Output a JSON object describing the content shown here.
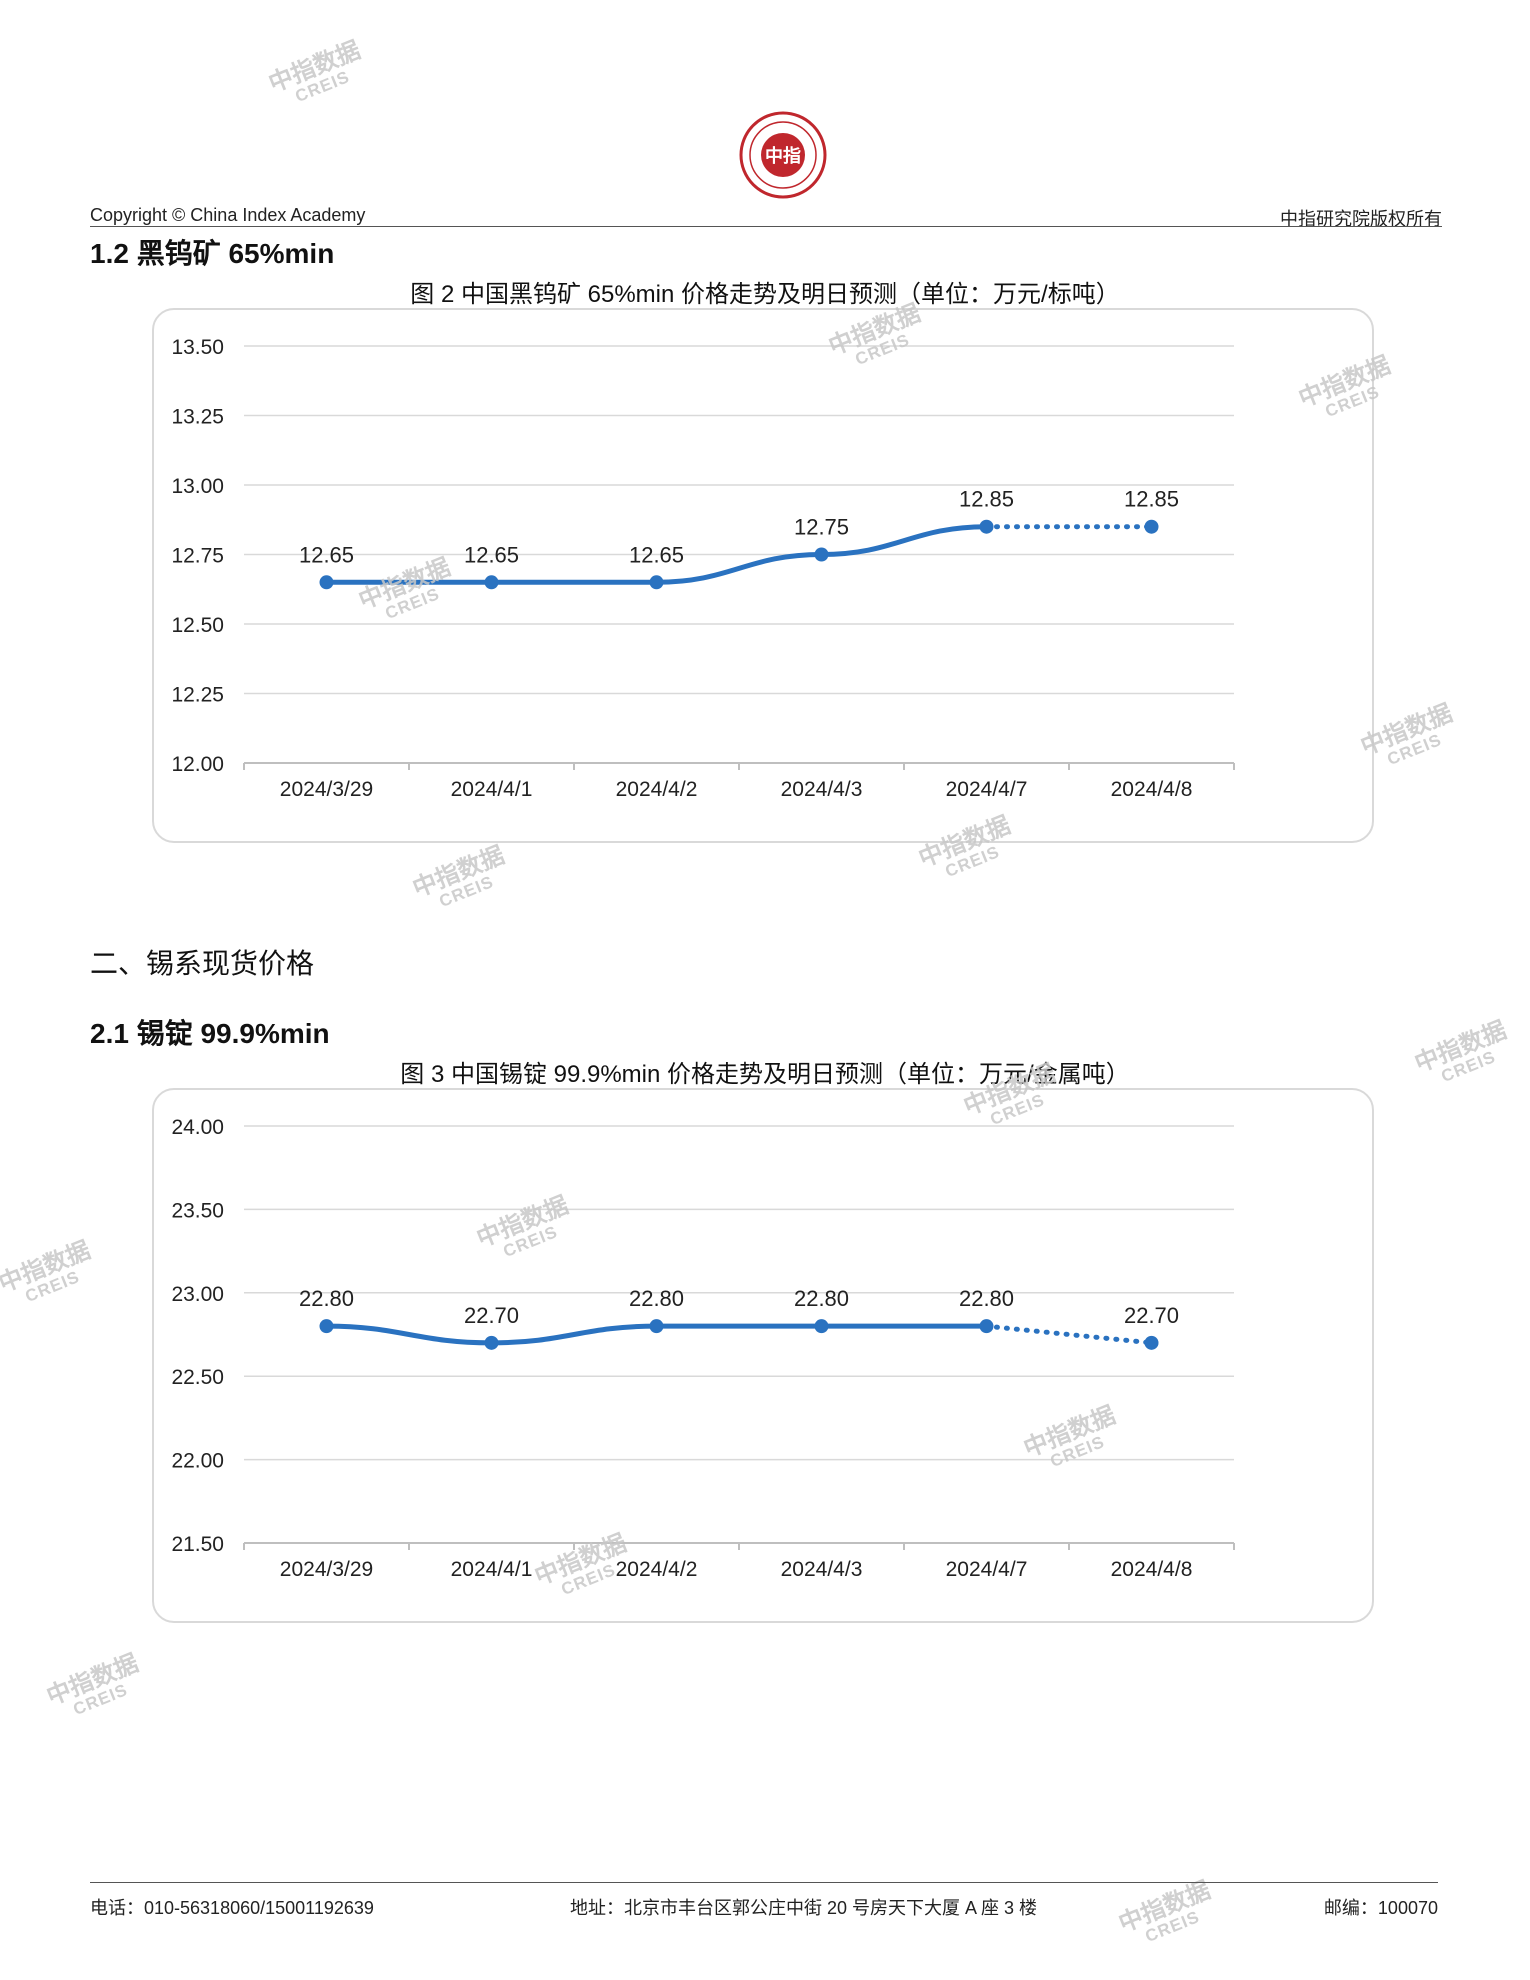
{
  "header": {
    "copyright": "Copyright © China Index Academy",
    "rights": "中指研究院版权所有",
    "logo_text": "中指"
  },
  "section_1_2": {
    "title": "1.2 黑钨矿 65%min"
  },
  "section_2": {
    "title": "二、锡系现货价格"
  },
  "section_2_1": {
    "title": "2.1 锡锭 99.9%min"
  },
  "watermark": {
    "line1": "中指数据",
    "line2": "CREIS"
  },
  "footer": {
    "phone": "电话：010-56318060/15001192639",
    "address": "地址：北京市丰台区郭公庄中街 20 号房天下大厦 A 座 3 楼",
    "postcode": "邮编：100070"
  },
  "colors": {
    "line": "#2a72c0",
    "grid": "#d9d9d9",
    "axis": "#bfbfbf",
    "frame": "#d9d9d9",
    "logo": "#c0272d"
  },
  "chart_data": [
    {
      "type": "line",
      "title": "图 2 中国黑钨矿 65%min 价格走势及明日预测（单位：万元/标吨）",
      "categories": [
        "2024/3/29",
        "2024/4/1",
        "2024/4/2",
        "2024/4/3",
        "2024/4/7",
        "2024/4/8"
      ],
      "values": [
        12.65,
        12.65,
        12.65,
        12.75,
        12.85,
        12.85
      ],
      "value_labels": [
        "12.65",
        "12.65",
        "12.65",
        "12.75",
        "12.85",
        "12.85"
      ],
      "forecast_from_index": 4,
      "ylim": [
        12.0,
        13.5
      ],
      "yticks": [
        "12.00",
        "12.25",
        "12.50",
        "12.75",
        "13.00",
        "13.25",
        "13.50"
      ],
      "grid": true,
      "legend": "none"
    },
    {
      "type": "line",
      "title": "图 3 中国锡锭 99.9%min 价格走势及明日预测（单位：万元/金属吨）",
      "categories": [
        "2024/3/29",
        "2024/4/1",
        "2024/4/2",
        "2024/4/3",
        "2024/4/7",
        "2024/4/8"
      ],
      "values": [
        22.8,
        22.7,
        22.8,
        22.8,
        22.8,
        22.7
      ],
      "value_labels": [
        "22.80",
        "22.70",
        "22.80",
        "22.80",
        "22.80",
        "22.70"
      ],
      "forecast_from_index": 4,
      "ylim": [
        21.5,
        24.0
      ],
      "yticks": [
        "21.50",
        "22.00",
        "22.50",
        "23.00",
        "23.50",
        "24.00"
      ],
      "grid": true,
      "legend": "none"
    }
  ]
}
